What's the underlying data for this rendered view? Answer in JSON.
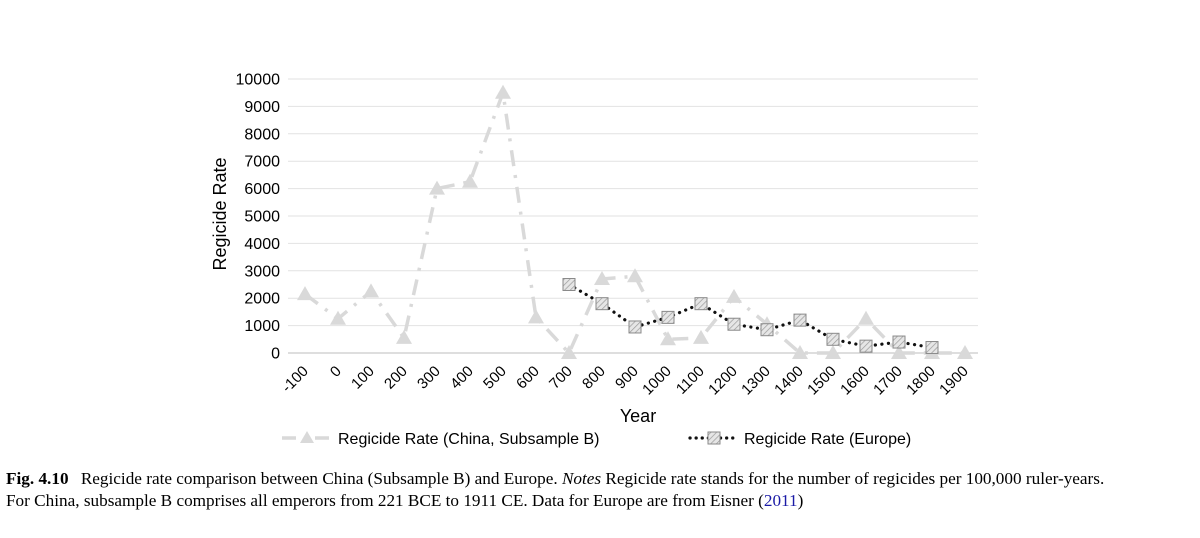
{
  "chart_data": {
    "type": "line",
    "ylabel": "Regicide Rate",
    "xlabel": "Year",
    "ylim": [
      0,
      10000
    ],
    "yticks": [
      "0",
      "1000",
      "2000",
      "3000",
      "4000",
      "5000",
      "6000",
      "7000",
      "8000",
      "9000",
      "10000"
    ],
    "categories": [
      "-100",
      "0",
      "100",
      "200",
      "300",
      "400",
      "500",
      "600",
      "700",
      "800",
      "900",
      "1000",
      "1100",
      "1200",
      "1300",
      "1400",
      "1500",
      "1600",
      "1700",
      "1800",
      "1900"
    ],
    "grid": true,
    "legend_position": "bottom",
    "series": [
      {
        "name": "Regicide Rate (China, Subsample B)",
        "style": "dash-dot",
        "marker": "triangle",
        "color": "#d9d9d9",
        "values": [
          2150,
          1250,
          2250,
          550,
          6000,
          6250,
          9500,
          1300,
          0,
          2700,
          2800,
          500,
          550,
          2050,
          1050,
          0,
          0,
          1250,
          0,
          0,
          0
        ]
      },
      {
        "name": "Regicide Rate (Europe)",
        "style": "dotted",
        "marker": "hatched-square",
        "color": "#111111",
        "marker_color": "#bfbfbf",
        "values": [
          null,
          null,
          null,
          null,
          null,
          null,
          null,
          null,
          2500,
          1800,
          950,
          1300,
          1800,
          1050,
          850,
          1200,
          500,
          250,
          400,
          200,
          null
        ]
      }
    ]
  },
  "caption": {
    "figure_label": "Fig. 4.10",
    "line1_text": "Regicide rate comparison between China (Subsample B) and Europe.",
    "notes_label": "Notes",
    "line1_rest": "Regicide rate stands for the number of regicides per 100,000 ruler-years.",
    "line2_text": "For China, subsample B comprises all emperors from 221 BCE to 1911 CE. Data for Europe are from Eisner (",
    "citation_year": "2011",
    "line2_end": ")"
  }
}
